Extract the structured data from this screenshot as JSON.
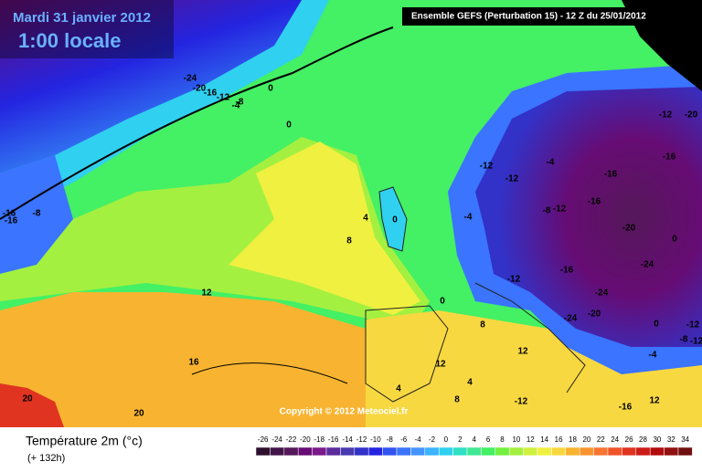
{
  "header": {
    "date": "Mardi 31 janvier 2012",
    "time": "1:00 locale",
    "model": "Ensemble GEFS (Perturbation 15)  -  12 Z du 25/01/2012"
  },
  "map": {
    "copyright": "Copyright © 2012 Meteociel.fr",
    "contour_labels": [
      -24,
      -20,
      -16,
      -12,
      -8,
      -4,
      0,
      0,
      -16,
      -8,
      -16,
      8,
      4,
      0,
      12,
      16,
      20,
      20,
      -12,
      -4,
      -12,
      -16,
      -12,
      -20,
      -16,
      -20,
      0,
      -4,
      -8,
      -12,
      -16,
      -24,
      -24,
      -24,
      0,
      -12,
      8,
      12,
      12,
      4,
      4,
      8,
      -12,
      -16,
      -16,
      12,
      -20,
      -4,
      -8,
      -12,
      0,
      -12
    ]
  },
  "legend": {
    "title": "Température 2m (°c)",
    "lead": "(+ 132h)",
    "values": [
      -26,
      -24,
      -22,
      -20,
      -18,
      -16,
      -14,
      -12,
      -10,
      -8,
      -6,
      -4,
      -2,
      0,
      2,
      4,
      6,
      8,
      10,
      12,
      14,
      16,
      18,
      20,
      22,
      24,
      26,
      28,
      30,
      32,
      34
    ],
    "colors": [
      "#2e102e",
      "#421448",
      "#55185a",
      "#660c74",
      "#7a1a8a",
      "#5c2c9c",
      "#4a3ab0",
      "#3232c8",
      "#2424e0",
      "#3254f0",
      "#3a74ff",
      "#4494ff",
      "#3cb4ff",
      "#30d0f0",
      "#30e0c4",
      "#40e894",
      "#44f064",
      "#74f040",
      "#a4f040",
      "#d0f040",
      "#f0f040",
      "#f8d840",
      "#f8b430",
      "#f89430",
      "#f87430",
      "#f05428",
      "#e03420",
      "#cc1c18",
      "#b00c0c",
      "#901010",
      "#701010"
    ]
  }
}
